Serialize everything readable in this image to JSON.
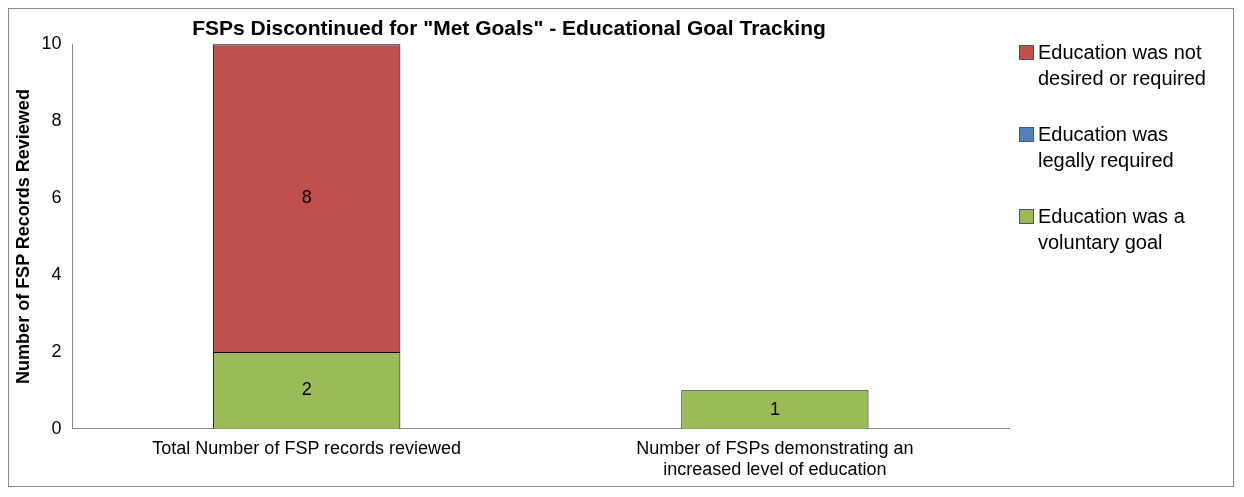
{
  "chart_data": {
    "type": "bar",
    "title": "FSPs Discontinued for \"Met Goals\" - Educational Goal Tracking",
    "ylabel": "Number of FSP Records Reviewed",
    "categories": [
      "Total Number of FSP records reviewed",
      "Number of FSPs demonstrating an increased level of education"
    ],
    "stacked": true,
    "series": [
      {
        "name": "Education was a voluntary goal",
        "color": "#9bbb59",
        "values": [
          2,
          1
        ],
        "value_labels": [
          "2",
          "1"
        ]
      },
      {
        "name": "Education was legally required",
        "color": "#4f81bd",
        "values": [
          0,
          0
        ],
        "value_labels": [
          null,
          null
        ]
      },
      {
        "name": "Education was not desired or required",
        "color": "#c0504d",
        "values": [
          8,
          0
        ],
        "value_labels": [
          "8",
          null
        ]
      }
    ],
    "ylim": [
      0,
      10
    ],
    "yticks": [
      0,
      2,
      4,
      6,
      8,
      10
    ],
    "grid": false,
    "legend": "right"
  }
}
